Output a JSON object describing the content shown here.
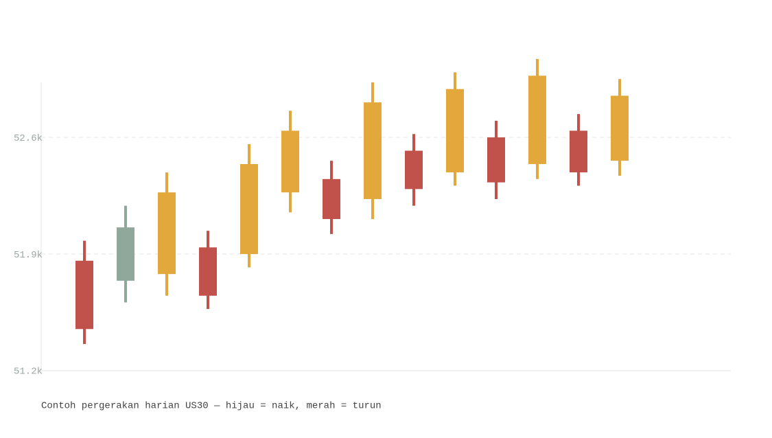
{
  "chart_data": {
    "type": "candlestick",
    "caption": "Contoh pergerakan harian US30 — hijau = naik, merah = turun",
    "open": [
      51860,
      51740,
      51780,
      51940,
      51900,
      52270,
      52350,
      52230,
      52520,
      52390,
      52600,
      52440,
      52640,
      52460
    ],
    "high": [
      51980,
      52190,
      52390,
      52040,
      52560,
      52760,
      52460,
      52930,
      52620,
      52990,
      52700,
      53070,
      52740,
      52950
    ],
    "low": [
      51360,
      51610,
      51650,
      51570,
      51820,
      52150,
      52020,
      52110,
      52190,
      52310,
      52230,
      52350,
      52310,
      52370
    ],
    "close": [
      51450,
      52060,
      52270,
      51650,
      52440,
      52640,
      52110,
      52810,
      52290,
      52890,
      52330,
      52970,
      52390,
      52850
    ],
    "colors": [
      "#c0524b",
      "#8fa89b",
      "#e2a83c",
      "#c0524b",
      "#e2a83c",
      "#e2a83c",
      "#c0524b",
      "#e2a83c",
      "#c0524b",
      "#e2a83c",
      "#c0524b",
      "#e2a83c",
      "#c0524b",
      "#e2a83c"
    ],
    "ylim": [
      51200,
      52930
    ],
    "yticks": [
      {
        "value": 51200,
        "label": "51.2k"
      },
      {
        "value": 51900,
        "label": "51.9k"
      },
      {
        "value": 52600,
        "label": "52.6k"
      }
    ],
    "grid": true
  }
}
